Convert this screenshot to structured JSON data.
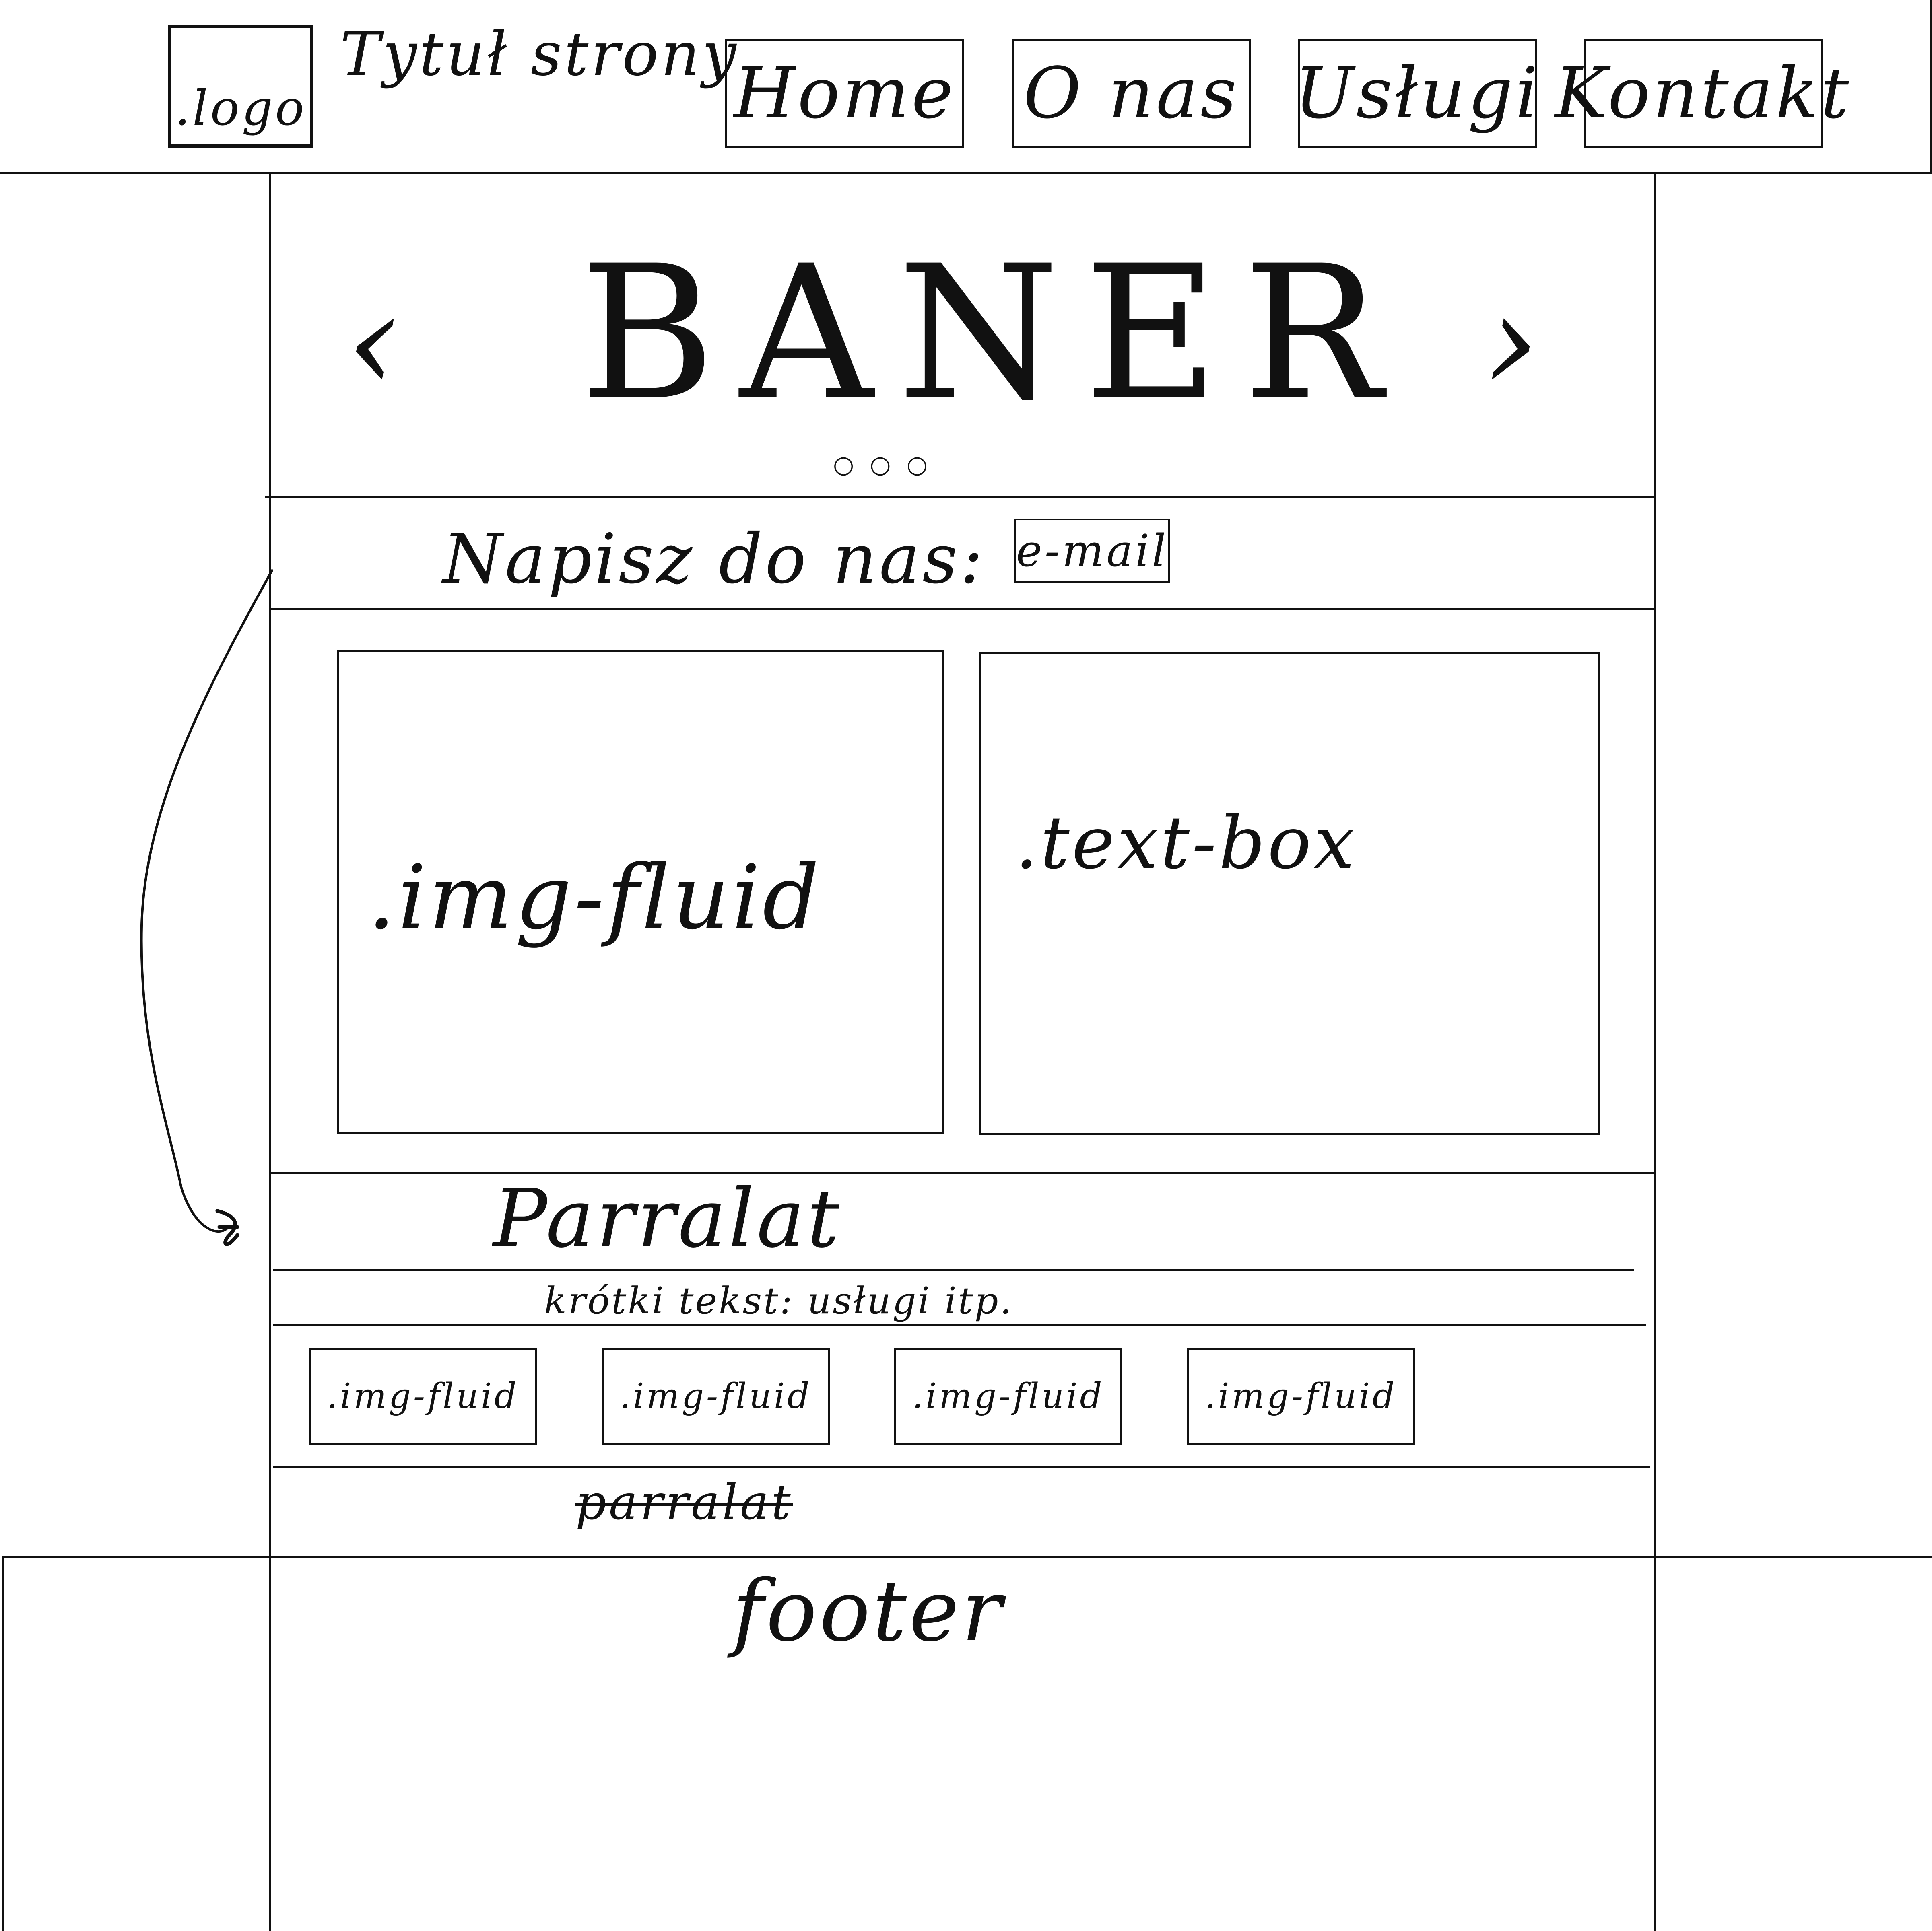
{
  "header": {
    "logo_label": ".logo",
    "site_title": "Tytuł strony",
    "nav": [
      {
        "label": "Home"
      },
      {
        "label": "O nas"
      },
      {
        "label": "Usługi"
      },
      {
        "label": "Kontakt"
      }
    ]
  },
  "banner": {
    "title": "BANER",
    "prev_glyph": "‹",
    "next_glyph": "›",
    "dots": "○ ○ ○"
  },
  "contact": {
    "label": "Napisz do nas:",
    "email_placeholder": "e-mail"
  },
  "content": {
    "image_label": ".img-fluid",
    "text_label": ".text-box"
  },
  "parallax": {
    "title": "Parralat",
    "short_text": "krótki tekst: usługi itp.",
    "thumbnails": [
      {
        "label": ".img-fluid"
      },
      {
        "label": ".img-fluid"
      },
      {
        "label": ".img-fluid"
      },
      {
        "label": ".img-fluid"
      }
    ],
    "crossed_label": "parralat"
  },
  "footer": {
    "label": "footer"
  }
}
